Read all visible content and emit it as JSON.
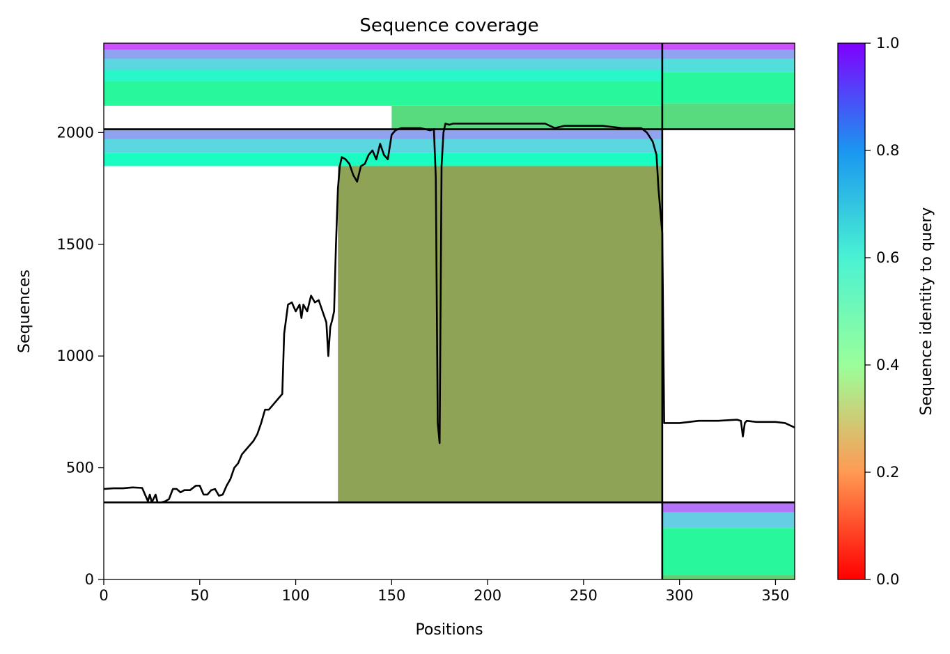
{
  "chart_data": {
    "type": "heatmap",
    "title": "Sequence coverage",
    "xlabel": "Positions",
    "ylabel": "Sequences",
    "xlim": [
      0,
      360
    ],
    "ylim": [
      0,
      2400
    ],
    "x_ticks": [
      0,
      50,
      100,
      150,
      200,
      250,
      300,
      350
    ],
    "y_ticks": [
      0,
      500,
      1000,
      1500,
      2000
    ],
    "colorbar": {
      "label": "Sequence identity to query",
      "range": [
        0,
        1
      ],
      "ticks": [
        "0.0",
        "0.2",
        "0.4",
        "0.6",
        "0.8",
        "1.0"
      ],
      "colormap": "rainbow_r"
    },
    "chain_boundaries": {
      "x": 291,
      "y": [
        345,
        2015
      ]
    },
    "blocks": [
      {
        "name": "block-top-left",
        "x": [
          0,
          291
        ],
        "y": [
          2015,
          2400
        ],
        "bands": [
          {
            "y": [
              2370,
              2400
            ],
            "x": [
              0,
              291
            ],
            "identity": 0.9
          },
          {
            "y": [
              2330,
              2370
            ],
            "x": [
              0,
              291
            ],
            "identity": 0.78
          },
          {
            "y": [
              2280,
              2330
            ],
            "x": [
              0,
              291
            ],
            "identity": 0.68
          },
          {
            "y": [
              2230,
              2280
            ],
            "x": [
              0,
              291
            ],
            "identity": 0.58
          },
          {
            "y": [
              2120,
              2230
            ],
            "x": [
              0,
              291
            ],
            "identity": 0.42
          },
          {
            "y": [
              2015,
              2120
            ],
            "x": [
              150,
              291
            ],
            "identity": 0.33
          }
        ]
      },
      {
        "name": "block-top-right",
        "x": [
          291,
          360
        ],
        "y": [
          2015,
          2400
        ],
        "bands": [
          {
            "y": [
              2370,
              2400
            ],
            "x": [
              291,
              360
            ],
            "identity": 0.9
          },
          {
            "y": [
              2330,
              2370
            ],
            "x": [
              291,
              360
            ],
            "identity": 0.78
          },
          {
            "y": [
              2270,
              2330
            ],
            "x": [
              291,
              360
            ],
            "identity": 0.66
          },
          {
            "y": [
              2130,
              2270
            ],
            "x": [
              291,
              360
            ],
            "identity": 0.42
          },
          {
            "y": [
              2015,
              2130
            ],
            "x": [
              291,
              360
            ],
            "identity": 0.33
          }
        ]
      },
      {
        "name": "block-middle-left",
        "x": [
          0,
          291
        ],
        "y": [
          345,
          2015
        ],
        "bands": [
          {
            "y": [
              1970,
              2015
            ],
            "x": [
              0,
              291
            ],
            "identity": 0.78
          },
          {
            "y": [
              1910,
              1970
            ],
            "x": [
              0,
              291
            ],
            "identity": 0.68
          },
          {
            "y": [
              1850,
              1910
            ],
            "x": [
              0,
              291
            ],
            "identity": 0.55
          },
          {
            "y": [
              345,
              1850
            ],
            "x": [
              122,
              291
            ],
            "identity": 0.22
          }
        ]
      },
      {
        "name": "block-bottom-right",
        "x": [
          291,
          360
        ],
        "y": [
          0,
          345
        ],
        "bands": [
          {
            "y": [
              300,
              345
            ],
            "x": [
              291,
              360
            ],
            "identity": 0.85
          },
          {
            "y": [
              230,
              300
            ],
            "x": [
              291,
              360
            ],
            "identity": 0.7
          },
          {
            "y": [
              20,
              230
            ],
            "x": [
              291,
              360
            ],
            "identity": 0.42
          },
          {
            "y": [
              0,
              20
            ],
            "x": [
              291,
              360
            ],
            "identity": 0.3
          }
        ]
      }
    ],
    "coverage_line": {
      "x": [
        0,
        5,
        10,
        15,
        20,
        23,
        24,
        25,
        27,
        28,
        30,
        32,
        34,
        36,
        38,
        40,
        42,
        45,
        48,
        50,
        52,
        54,
        56,
        58,
        60,
        62,
        64,
        66,
        68,
        70,
        72,
        74,
        76,
        78,
        80,
        82,
        84,
        86,
        88,
        90,
        92,
        93,
        94,
        96,
        98,
        100,
        102,
        103,
        104,
        106,
        108,
        110,
        112,
        114,
        116,
        117,
        118,
        119,
        120,
        121,
        122,
        123,
        124,
        126,
        128,
        130,
        132,
        134,
        136,
        138,
        140,
        142,
        144,
        146,
        148,
        150,
        152,
        155,
        160,
        165,
        170,
        172,
        173,
        174,
        175,
        176,
        177,
        178,
        180,
        182,
        185,
        190,
        200,
        210,
        220,
        230,
        235,
        240,
        250,
        260,
        270,
        280,
        283,
        286,
        288,
        289,
        290,
        291,
        292,
        300,
        310,
        320,
        330,
        332,
        333,
        334,
        335,
        340,
        350,
        355,
        360
      ],
      "y": [
        405,
        408,
        408,
        412,
        410,
        350,
        380,
        345,
        380,
        345,
        345,
        350,
        360,
        405,
        405,
        390,
        400,
        400,
        420,
        420,
        380,
        380,
        400,
        405,
        375,
        380,
        420,
        450,
        500,
        520,
        560,
        580,
        600,
        620,
        650,
        700,
        760,
        760,
        780,
        800,
        820,
        830,
        1100,
        1230,
        1240,
        1200,
        1230,
        1170,
        1230,
        1200,
        1270,
        1240,
        1250,
        1200,
        1150,
        1000,
        1130,
        1160,
        1200,
        1500,
        1750,
        1850,
        1890,
        1880,
        1860,
        1810,
        1780,
        1850,
        1860,
        1900,
        1920,
        1880,
        1950,
        1900,
        1880,
        1990,
        2010,
        2020,
        2020,
        2020,
        2010,
        2015,
        1800,
        700,
        610,
        1850,
        2000,
        2040,
        2035,
        2040,
        2040,
        2040,
        2040,
        2040,
        2040,
        2040,
        2020,
        2030,
        2030,
        2030,
        2020,
        2020,
        2000,
        1960,
        1900,
        1750,
        1650,
        1550,
        700,
        700,
        710,
        710,
        715,
        710,
        640,
        700,
        710,
        705,
        705,
        700,
        680
      ]
    }
  }
}
